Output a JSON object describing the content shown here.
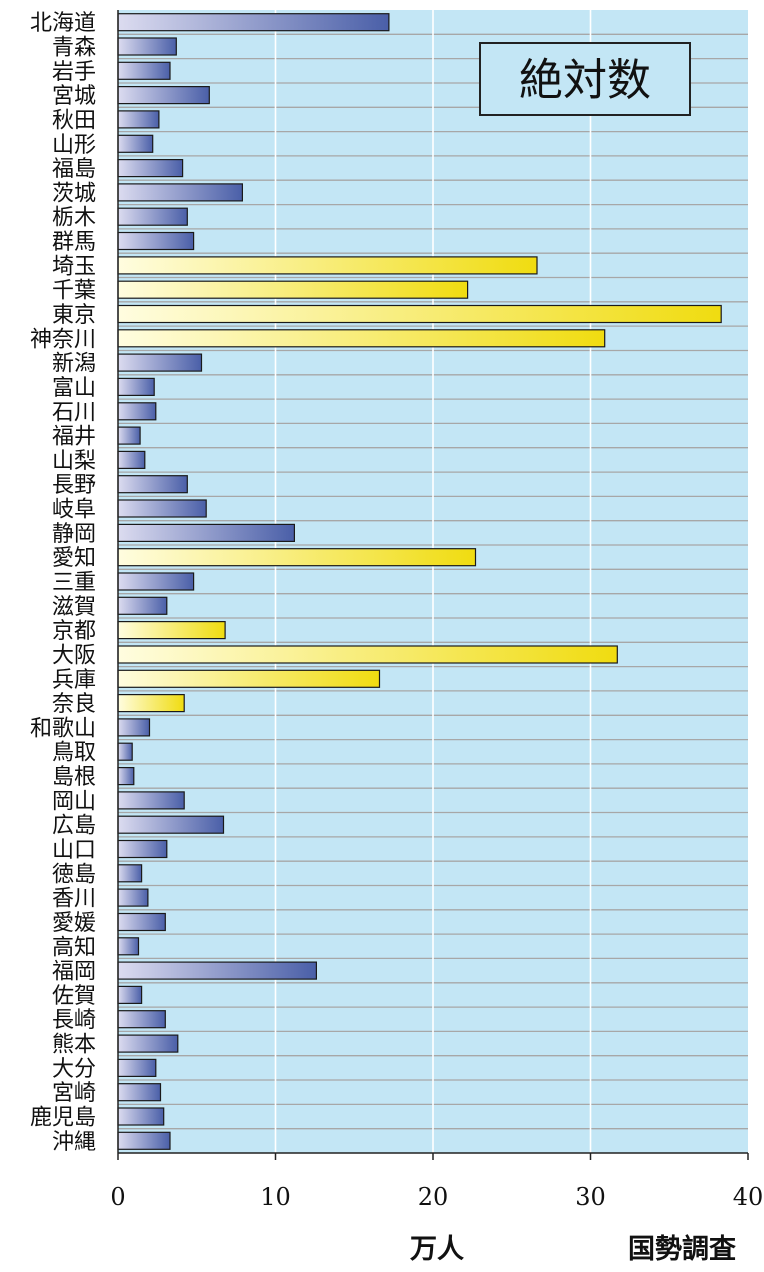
{
  "chart_data": {
    "type": "bar",
    "orientation": "horizontal",
    "title": "絶対数",
    "xlabel": "万人",
    "source": "国勢調査",
    "xlim": [
      0,
      40
    ],
    "xticks": [
      0,
      10,
      20,
      30,
      40
    ],
    "grid": true,
    "colors": {
      "background": "#c3e6f5",
      "bar_blue_light": "#dcdcf0",
      "bar_blue_dark": "#4a5fa8",
      "bar_yellow_light": "#fffde0",
      "bar_yellow_dark": "#f0dc10"
    },
    "categories": [
      "北海道",
      "青森",
      "岩手",
      "宮城",
      "秋田",
      "山形",
      "福島",
      "茨城",
      "栃木",
      "群馬",
      "埼玉",
      "千葉",
      "東京",
      "神奈川",
      "新潟",
      "富山",
      "石川",
      "福井",
      "山梨",
      "長野",
      "岐阜",
      "静岡",
      "愛知",
      "三重",
      "滋賀",
      "京都",
      "大阪",
      "兵庫",
      "奈良",
      "和歌山",
      "鳥取",
      "島根",
      "岡山",
      "広島",
      "山口",
      "徳島",
      "香川",
      "愛媛",
      "高知",
      "福岡",
      "佐賀",
      "長崎",
      "熊本",
      "大分",
      "宮崎",
      "鹿児島",
      "沖縄"
    ],
    "values": [
      17.2,
      3.7,
      3.3,
      5.8,
      2.6,
      2.2,
      4.1,
      7.9,
      4.4,
      4.8,
      26.6,
      22.2,
      38.3,
      30.9,
      5.3,
      2.3,
      2.4,
      1.4,
      1.7,
      4.4,
      5.6,
      11.2,
      22.7,
      4.8,
      3.1,
      6.8,
      31.7,
      16.6,
      4.2,
      2.0,
      0.9,
      1.0,
      4.2,
      6.7,
      3.1,
      1.5,
      1.9,
      3.0,
      1.3,
      12.6,
      1.5,
      3.0,
      3.8,
      2.4,
      2.7,
      2.9,
      3.3
    ],
    "highlight": [
      "blue",
      "blue",
      "blue",
      "blue",
      "blue",
      "blue",
      "blue",
      "blue",
      "blue",
      "blue",
      "yellow",
      "yellow",
      "yellow",
      "yellow",
      "blue",
      "blue",
      "blue",
      "blue",
      "blue",
      "blue",
      "blue",
      "blue",
      "yellow",
      "blue",
      "blue",
      "yellow",
      "yellow",
      "yellow",
      "yellow",
      "blue",
      "blue",
      "blue",
      "blue",
      "blue",
      "blue",
      "blue",
      "blue",
      "blue",
      "blue",
      "blue",
      "blue",
      "blue",
      "blue",
      "blue",
      "blue",
      "blue",
      "blue"
    ]
  }
}
